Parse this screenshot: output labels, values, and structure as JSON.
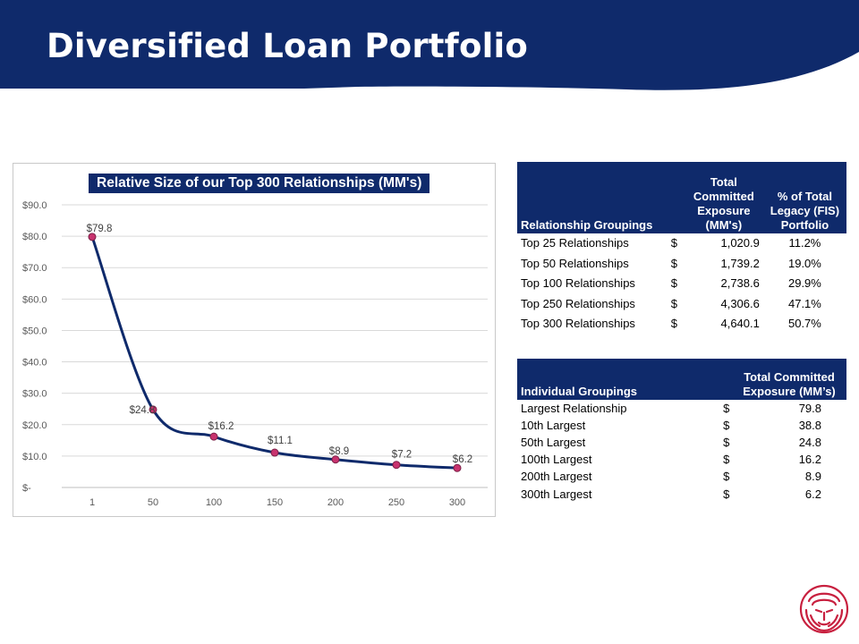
{
  "header": {
    "title": "Diversified Loan Portfolio",
    "color": "#0f2a6b"
  },
  "chart_data": {
    "type": "line",
    "title": "Relative Size of our Top 300 Relationships (MM's)",
    "x": [
      1,
      50,
      100,
      150,
      200,
      250,
      300
    ],
    "categories": [
      "1",
      "50",
      "100",
      "150",
      "200",
      "250",
      "300"
    ],
    "values": [
      79.8,
      24.8,
      16.2,
      11.1,
      8.9,
      7.2,
      6.2
    ],
    "data_labels": [
      "$79.8",
      "$24.8",
      "$16.2",
      "$11.1",
      "$8.9",
      "$7.2",
      "$6.2"
    ],
    "y_ticks": [
      0,
      10,
      20,
      30,
      40,
      50,
      60,
      70,
      80,
      90
    ],
    "y_tick_labels": [
      "$-",
      "$10.0",
      "$20.0",
      "$30.0",
      "$40.0",
      "$50.0",
      "$60.0",
      "$70.0",
      "$80.0",
      "$90.0"
    ],
    "ylim": [
      0,
      90
    ],
    "xlabel": "",
    "ylabel": "",
    "grid": true,
    "line_color": "#0f2a6b",
    "marker_color": "#c8336e"
  },
  "table1": {
    "headers": [
      "Relationship Groupings",
      "Total Committed Exposure (MM's)",
      "% of Total Legacy (FIS) Portfolio"
    ],
    "rows": [
      {
        "label": "Top 25 Relationships",
        "currency": "$",
        "value": "1,020.9",
        "pct": "11.2%"
      },
      {
        "label": "Top 50 Relationships",
        "currency": "$",
        "value": "1,739.2",
        "pct": "19.0%"
      },
      {
        "label": "Top 100 Relationships",
        "currency": "$",
        "value": "2,738.6",
        "pct": "29.9%"
      },
      {
        "label": "Top 250 Relationships",
        "currency": "$",
        "value": "4,306.6",
        "pct": "47.1%"
      },
      {
        "label": "Top 300 Relationships",
        "currency": "$",
        "value": "4,640.1",
        "pct": "50.7%"
      }
    ]
  },
  "table2": {
    "headers": [
      "Individual Groupings",
      "Total Committed Exposure (MM’s)"
    ],
    "rows": [
      {
        "label": "Largest Relationship",
        "currency": "$",
        "value": "79.8"
      },
      {
        "label": "10th Largest",
        "currency": "$",
        "value": "38.8"
      },
      {
        "label": "50th Largest",
        "currency": "$",
        "value": "24.8"
      },
      {
        "label": "100th Largest",
        "currency": "$",
        "value": "16.2"
      },
      {
        "label": "200th Largest",
        "currency": "$",
        "value": "8.9"
      },
      {
        "label": "300th Largest",
        "currency": "$",
        "value": "6.2"
      }
    ]
  },
  "logo": {
    "icon": "lion-head-icon",
    "color": "#c8203f"
  }
}
